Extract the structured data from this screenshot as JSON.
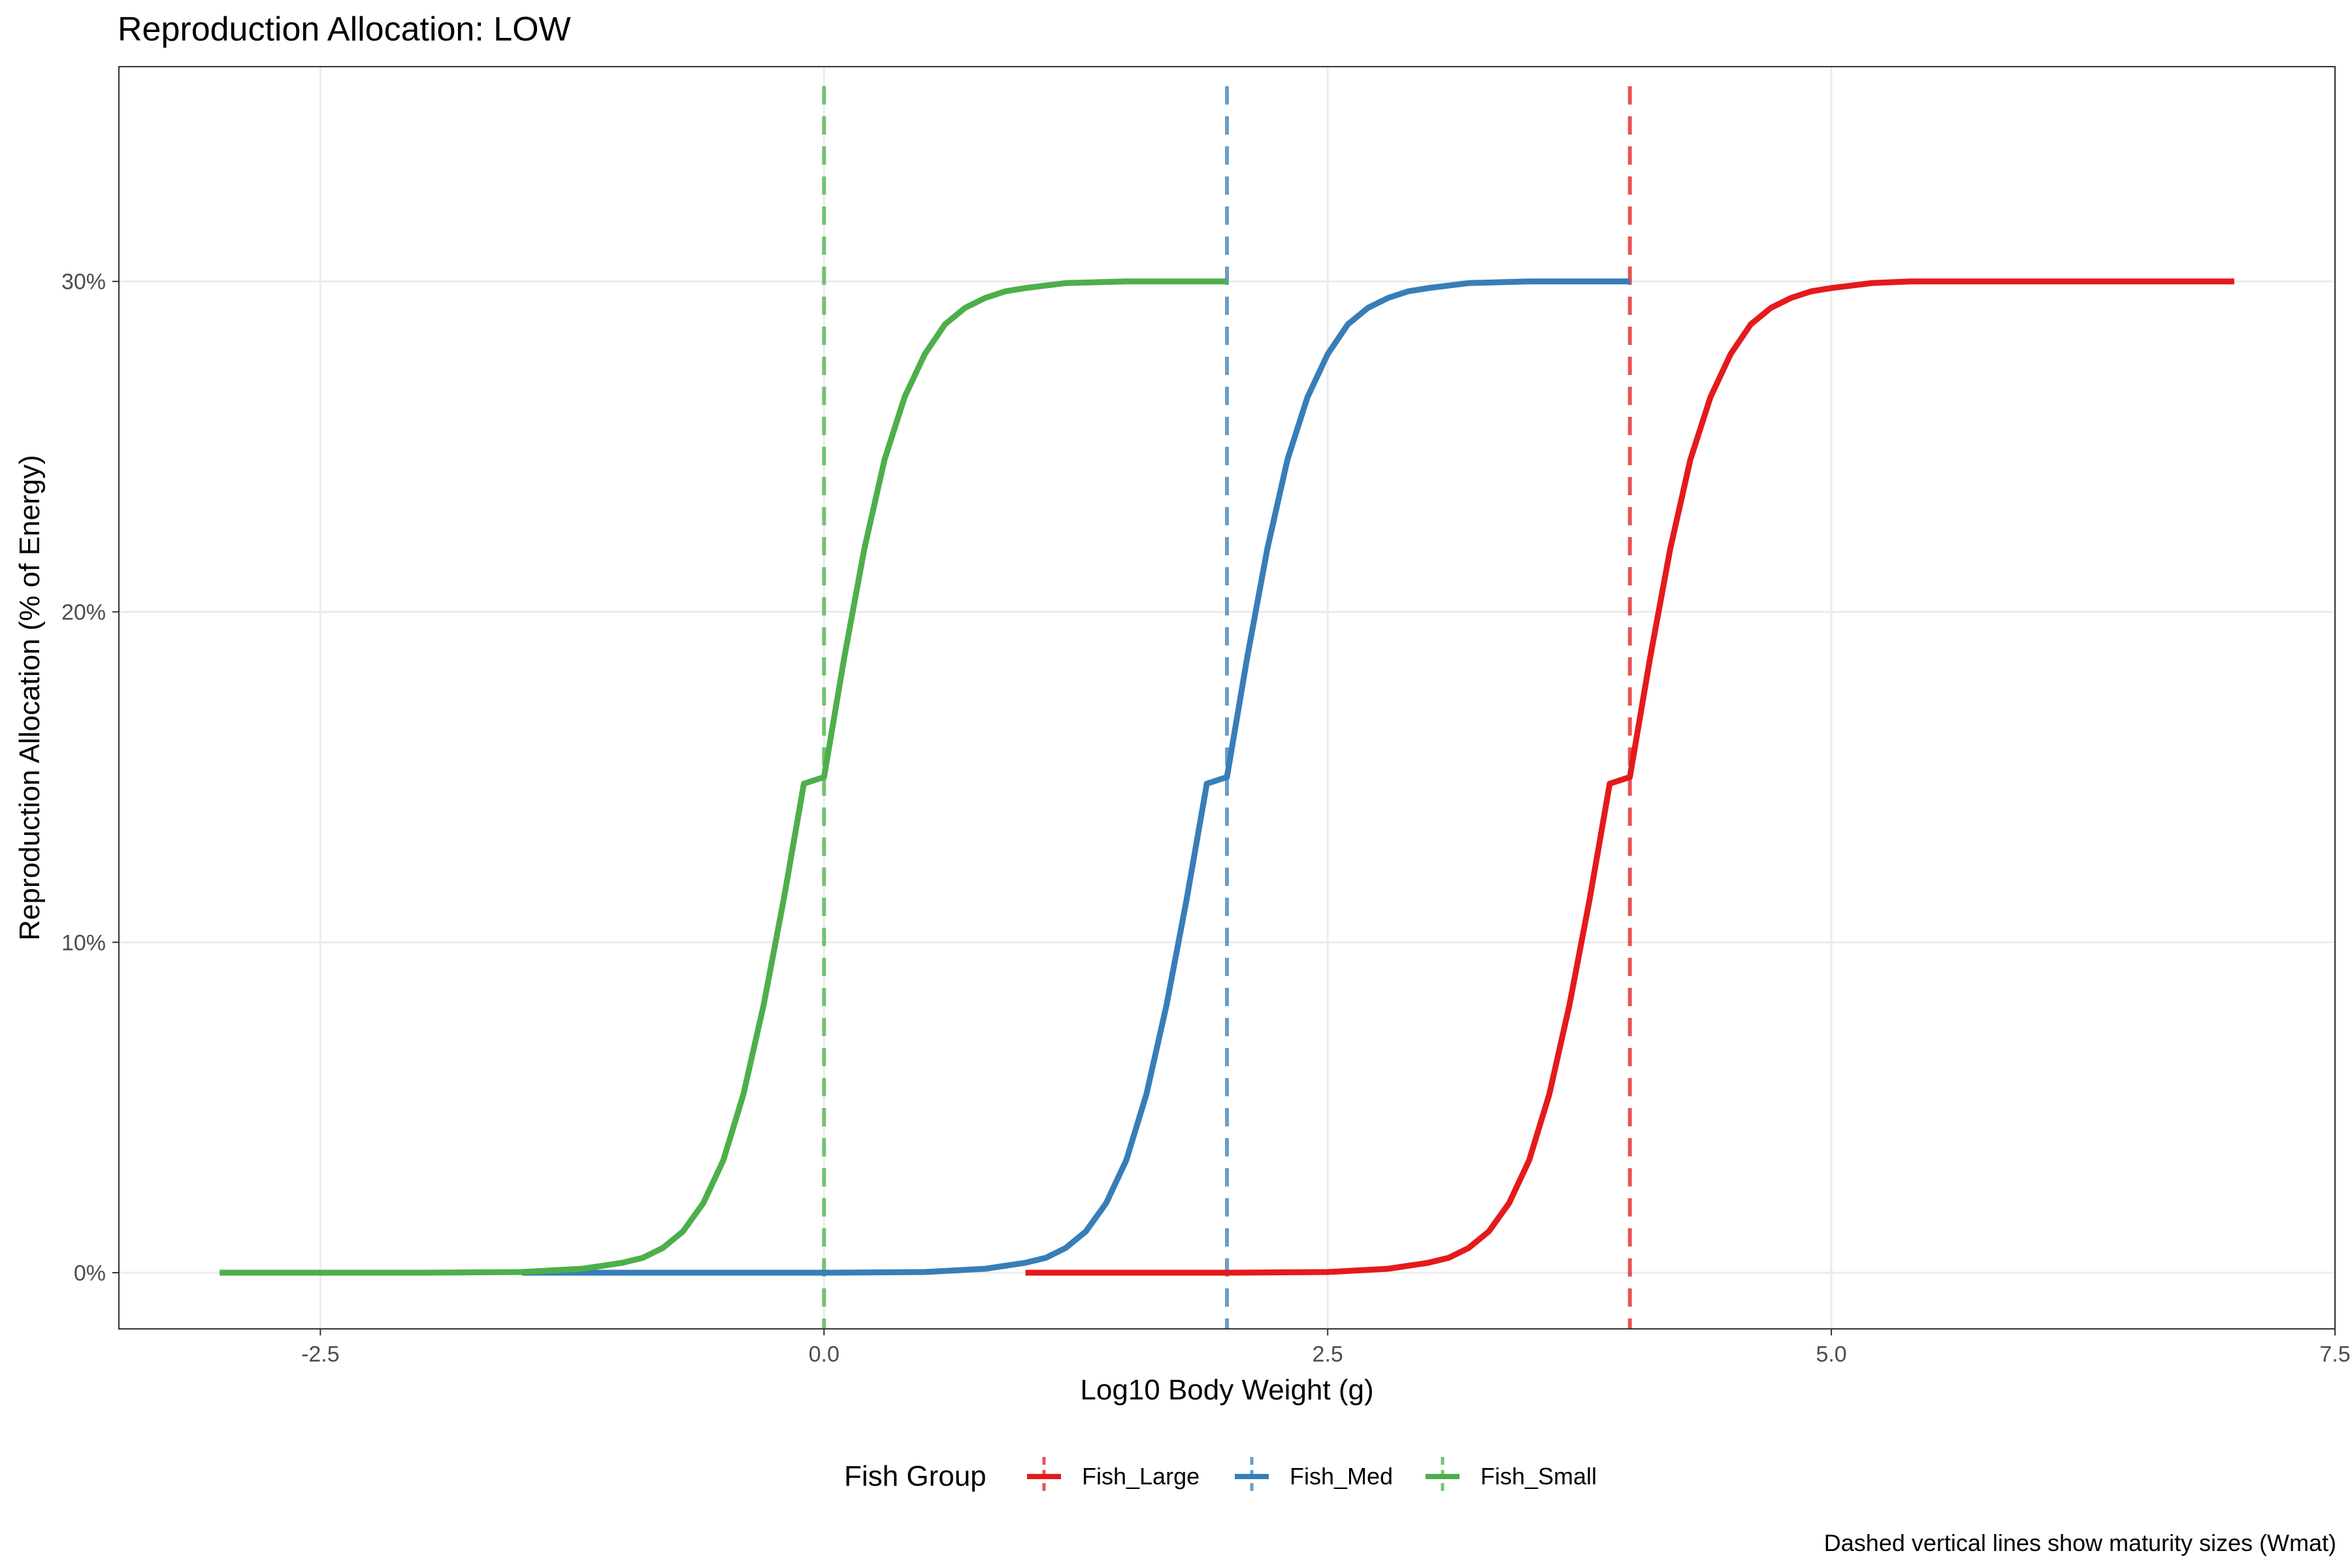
{
  "chart_data": {
    "type": "line",
    "title": "Reproduction Allocation: LOW",
    "xlabel": "Log10 Body Weight (g)",
    "ylabel": "Reproduction Allocation (% of Energy)",
    "caption": "Dashed vertical lines show maturity sizes (Wmat)",
    "xlim": [
      -3.5,
      7.5
    ],
    "ylim": [
      -0.017,
      0.365
    ],
    "x_ticks": [
      {
        "value": -2.5,
        "label": "-2.5"
      },
      {
        "value": 0,
        "label": "0.0"
      },
      {
        "value": 2.5,
        "label": "2.5"
      },
      {
        "value": 5,
        "label": "5.0"
      },
      {
        "value": 7.5,
        "label": "7.5"
      }
    ],
    "y_ticks": [
      {
        "value": 0,
        "label": "0%"
      },
      {
        "value": 0.1,
        "label": "10%"
      },
      {
        "value": 0.2,
        "label": "20%"
      },
      {
        "value": 0.3,
        "label": "30%"
      }
    ],
    "grid": true,
    "legend": {
      "title": "Fish Group",
      "position": "bottom"
    },
    "series": [
      {
        "name": "Fish_Large",
        "color": "#e41a1c",
        "wmat_log10": 4.0,
        "max_allocation": 0.3,
        "x": [
          1.0,
          1.5,
          2.0,
          2.5,
          2.8,
          3.0,
          3.1,
          3.2,
          3.3,
          3.4,
          3.5,
          3.6,
          3.7,
          3.8,
          3.9,
          4.0,
          4.1,
          4.2,
          4.3,
          4.4,
          4.5,
          4.6,
          4.7,
          4.8,
          4.9,
          5.0,
          5.2,
          5.4,
          5.7,
          6.0,
          6.5,
          7.0
        ],
        "y": [
          0.0,
          0.0,
          0.0,
          0.0002,
          0.0012,
          0.003,
          0.0045,
          0.0075,
          0.0125,
          0.021,
          0.034,
          0.054,
          0.081,
          0.113,
          0.148,
          0.15,
          0.186,
          0.219,
          0.246,
          0.265,
          0.278,
          0.287,
          0.292,
          0.295,
          0.297,
          0.298,
          0.2995,
          0.3,
          0.3,
          0.3,
          0.3,
          0.3
        ]
      },
      {
        "name": "Fish_Med",
        "color": "#377eb8",
        "wmat_log10": 2.0,
        "max_allocation": 0.3,
        "x": [
          -1.5,
          -1.0,
          0.0,
          0.5,
          0.8,
          1.0,
          1.1,
          1.2,
          1.3,
          1.4,
          1.5,
          1.6,
          1.7,
          1.8,
          1.9,
          2.0,
          2.1,
          2.2,
          2.3,
          2.4,
          2.5,
          2.6,
          2.7,
          2.8,
          2.9,
          3.0,
          3.2,
          3.5,
          4.0
        ],
        "y": [
          0.0,
          0.0,
          0.0,
          0.0002,
          0.0012,
          0.003,
          0.0045,
          0.0075,
          0.0125,
          0.021,
          0.034,
          0.054,
          0.081,
          0.113,
          0.148,
          0.15,
          0.186,
          0.219,
          0.246,
          0.265,
          0.278,
          0.287,
          0.292,
          0.295,
          0.297,
          0.298,
          0.2995,
          0.3,
          0.3
        ]
      },
      {
        "name": "Fish_Small",
        "color": "#4daf4a",
        "wmat_log10": 0.0,
        "max_allocation": 0.3,
        "x": [
          -3.0,
          -2.5,
          -2.0,
          -1.5,
          -1.2,
          -1.0,
          -0.9,
          -0.8,
          -0.7,
          -0.6,
          -0.5,
          -0.4,
          -0.3,
          -0.2,
          -0.1,
          0.0,
          0.1,
          0.2,
          0.3,
          0.4,
          0.5,
          0.6,
          0.7,
          0.8,
          0.9,
          1.0,
          1.2,
          1.5,
          2.0
        ],
        "y": [
          0.0,
          0.0,
          0.0,
          0.0002,
          0.0012,
          0.003,
          0.0045,
          0.0075,
          0.0125,
          0.021,
          0.034,
          0.054,
          0.081,
          0.113,
          0.148,
          0.15,
          0.186,
          0.219,
          0.246,
          0.265,
          0.278,
          0.287,
          0.292,
          0.295,
          0.297,
          0.298,
          0.2995,
          0.3,
          0.3
        ]
      }
    ]
  }
}
